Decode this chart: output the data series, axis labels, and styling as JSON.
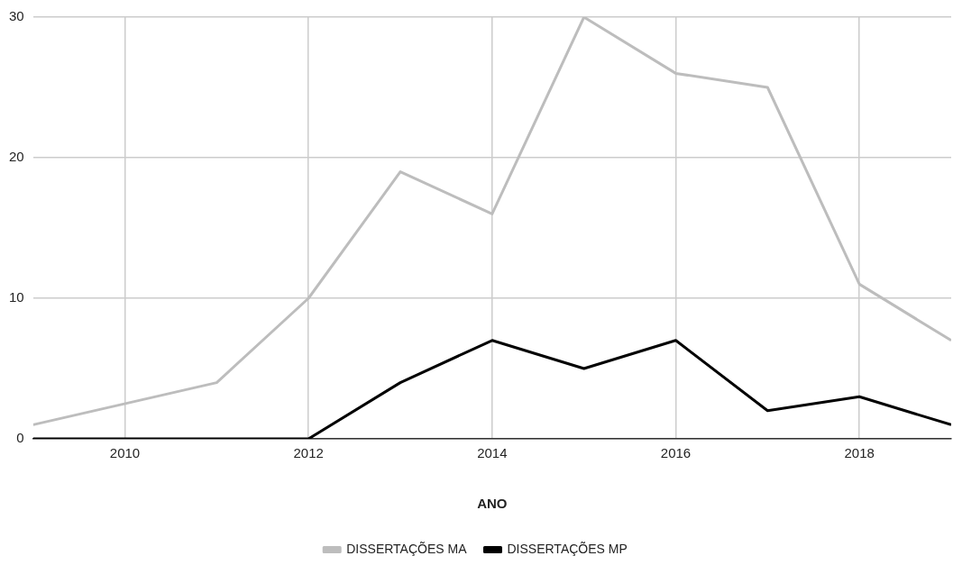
{
  "chart_data": {
    "type": "line",
    "xlabel": "ANO",
    "x": [
      2009,
      2010,
      2011,
      2012,
      2013,
      2014,
      2015,
      2016,
      2017,
      2018,
      2019
    ],
    "series": [
      {
        "name": "DISSERTAÇÕES MA",
        "color": "#bdbdbd",
        "x": [
          2009,
          2011,
          2012,
          2013,
          2014,
          2015,
          2016,
          2017,
          2018,
          2019
        ],
        "values": [
          1,
          4,
          10,
          19,
          16,
          30,
          26,
          25,
          11,
          7
        ]
      },
      {
        "name": "DISSERTAÇÕES MP",
        "color": "#000000",
        "values": [
          0,
          0,
          0,
          0,
          4,
          7,
          5,
          7,
          2,
          3,
          1
        ]
      }
    ],
    "xlim": [
      2009,
      2019
    ],
    "xticks": [
      2010,
      2012,
      2014,
      2016,
      2018
    ],
    "ylim": [
      0,
      30
    ],
    "yticks": [
      0,
      10,
      20,
      30
    ],
    "grid": true,
    "legend": "bottom",
    "marker": "none",
    "line_style": "solid"
  }
}
